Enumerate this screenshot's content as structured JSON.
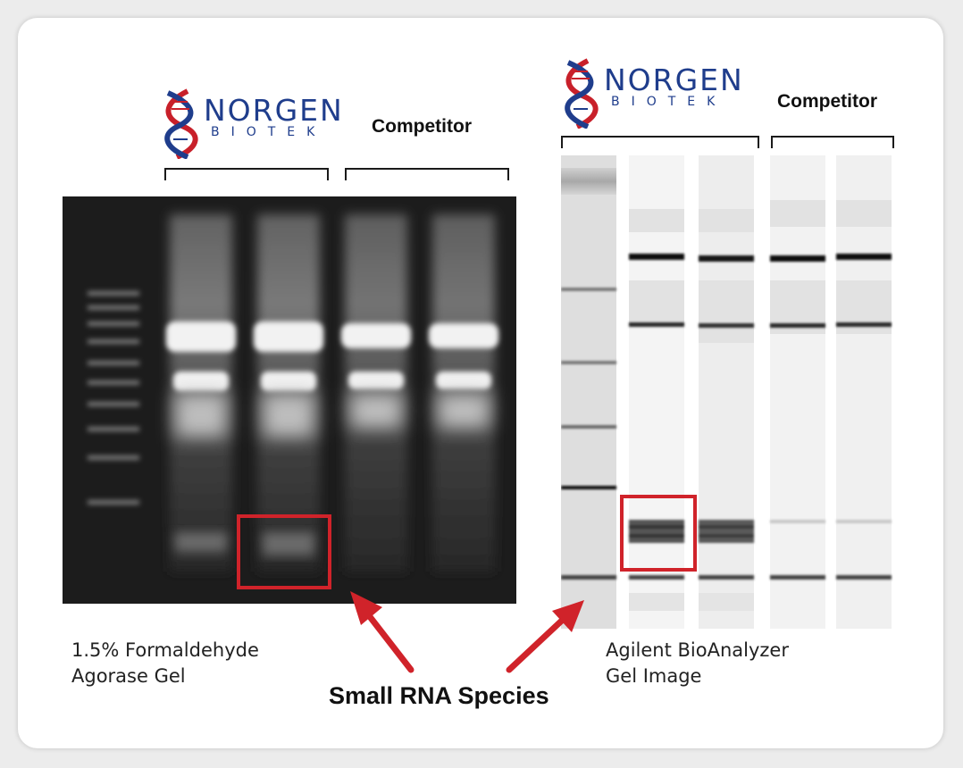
{
  "logo_left": {
    "word": "NORGEN",
    "sub": "BIOTEK",
    "icon": "dna-helix-icon"
  },
  "logo_right": {
    "word": "NORGEN",
    "sub": "BIOTEK",
    "icon": "dna-helix-icon"
  },
  "left_panel": {
    "competitor_label": "Competitor",
    "caption_line1": "1.5% Formaldehyde",
    "caption_line2": "Agorase Gel"
  },
  "right_panel": {
    "competitor_label": "Competitor",
    "caption_line1": "Agilent BioAnalyzer",
    "caption_line2": "Gel Image"
  },
  "callout_label": "Small RNA Species",
  "colors": {
    "logo_blue": "#1f3d8c",
    "logo_red": "#c8202a",
    "highlight_red": "#d0232a",
    "gel_background": "#1c1c1c"
  }
}
